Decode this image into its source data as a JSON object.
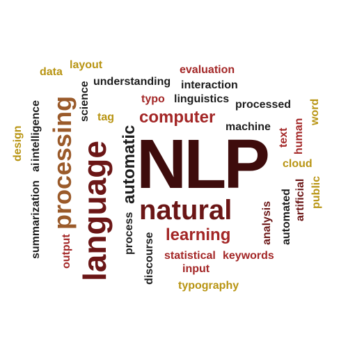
{
  "colors": {
    "maroon": "#6b1616",
    "red": "#a32626",
    "gold": "#b89412",
    "olive": "#8a7414",
    "brown": "#9a5a2a",
    "dark": "#1c1c1c",
    "darkred": "#3e0c0c"
  },
  "words": {
    "nlp": "NLP",
    "natural": "natural",
    "language": "language",
    "processing": "processing",
    "automatic": "automatic",
    "computer": "computer",
    "learning": "learning",
    "statistical": "statistical",
    "keywords": "keywords",
    "input": "input",
    "typography": "typography",
    "discourse": "discourse",
    "process": "process",
    "output": "output",
    "summarization": "summarization",
    "ai": "ai",
    "intelligence": "intelligence",
    "design": "design",
    "data": "data",
    "layout": "layout",
    "science": "science",
    "understanding": "understanding",
    "evaluation": "evaluation",
    "interaction": "interaction",
    "typo": "typo",
    "linguistics": "linguistics",
    "processed": "processed",
    "tag": "tag",
    "machine": "machine",
    "text": "text",
    "human": "human",
    "word": "word",
    "cloud": "cloud",
    "artificial": "artificial",
    "public": "public",
    "automated": "automated",
    "analysis": "analysis"
  }
}
